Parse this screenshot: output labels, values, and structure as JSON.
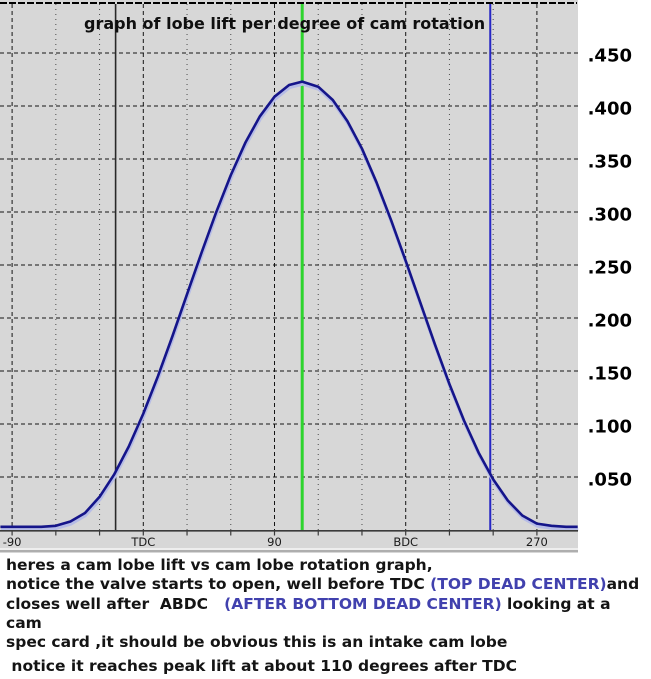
{
  "chart_data": {
    "type": "line",
    "title": "graph of lobe lift per degree of cam rotation",
    "x_axis": {
      "major_ticks": [
        {
          "deg": -90,
          "label": "-90"
        },
        {
          "deg": 0,
          "label": "TDC"
        },
        {
          "deg": 90,
          "label": "90"
        },
        {
          "deg": 180,
          "label": "BDC"
        },
        {
          "deg": 270,
          "label": "270"
        }
      ],
      "minor_tick_step_deg": 30,
      "range_deg": [
        -98,
        298
      ]
    },
    "y_axis": {
      "ticks": [
        {
          "value": 0.45,
          "label": ".450"
        },
        {
          "value": 0.4,
          "label": ".400"
        },
        {
          "value": 0.35,
          "label": ".350"
        },
        {
          "value": 0.3,
          "label": ".300"
        },
        {
          "value": 0.25,
          "label": ".250"
        },
        {
          "value": 0.2,
          "label": ".200"
        },
        {
          "value": 0.15,
          "label": ".150"
        },
        {
          "value": 0.1,
          "label": ".100"
        },
        {
          "value": 0.05,
          "label": ".050"
        }
      ],
      "range": [
        0,
        0.5
      ]
    },
    "series": [
      {
        "name": "cam lobe lift",
        "peak_lift": 0.423,
        "peak_deg_after_tdc": 110,
        "points_deg_lift": [
          [
            -98,
            0.003
          ],
          [
            -90,
            0.003
          ],
          [
            -80,
            0.003
          ],
          [
            -70,
            0.003
          ],
          [
            -60,
            0.004
          ],
          [
            -50,
            0.008
          ],
          [
            -40,
            0.016
          ],
          [
            -30,
            0.0313
          ],
          [
            -20,
            0.0523
          ],
          [
            -10,
            0.0787
          ],
          [
            0,
            0.1098
          ],
          [
            10,
            0.145
          ],
          [
            20,
            0.183
          ],
          [
            30,
            0.2224
          ],
          [
            40,
            0.2618
          ],
          [
            50,
            0.2998
          ],
          [
            60,
            0.3348
          ],
          [
            70,
            0.3653
          ],
          [
            80,
            0.3903
          ],
          [
            90,
            0.4088
          ],
          [
            100,
            0.4198
          ],
          [
            109,
            0.423
          ],
          [
            120,
            0.4182
          ],
          [
            130,
            0.4057
          ],
          [
            140,
            0.3858
          ],
          [
            150,
            0.3597
          ],
          [
            160,
            0.328
          ],
          [
            170,
            0.2923
          ],
          [
            180,
            0.254
          ],
          [
            190,
            0.2145
          ],
          [
            200,
            0.1752
          ],
          [
            210,
            0.1377
          ],
          [
            220,
            0.1033
          ],
          [
            230,
            0.073
          ],
          [
            240,
            0.0477
          ],
          [
            250,
            0.0278
          ],
          [
            260,
            0.0137
          ],
          [
            270,
            0.006
          ],
          [
            280,
            0.004
          ],
          [
            290,
            0.003
          ],
          [
            298,
            0.003
          ]
        ]
      }
    ],
    "markers": [
      {
        "name": "valve-open-line",
        "deg": -19,
        "color": "#282828"
      },
      {
        "name": "peak-lift-line",
        "deg": 109,
        "color": "#2ed42e"
      },
      {
        "name": "valve-close-line",
        "deg": 238,
        "color": "#2626c4"
      }
    ],
    "legend": "none",
    "grid": "dashed-major, dotted-minor"
  },
  "colors": {
    "plot_bg": "#d7d7d7",
    "grid": "#141414",
    "minor_grid": "#4a4a4a",
    "curve": "#15158a",
    "curve_shadow": "#b6bce6",
    "axis": "#3a3a3a",
    "top_border": "#000000",
    "bottom_border": "#a8a8a8",
    "tick_label": "#1a1a1a",
    "y_label": "#000000",
    "caption_text": "#141414",
    "caption_accent": "#4141ae"
  },
  "caption": {
    "lines": [
      {
        "gap_before": false,
        "segments": [
          {
            "text": "heres a cam lobe lift vs cam lobe rotation graph,",
            "accent": false
          }
        ]
      },
      {
        "gap_before": false,
        "segments": [
          {
            "text": "notice the valve starts to open, well before TDC ",
            "accent": false
          },
          {
            "text": "(TOP DEAD CENTER)",
            "accent": true
          },
          {
            "text": "and",
            "accent": false
          }
        ]
      },
      {
        "gap_before": false,
        "segments": [
          {
            "text": "closes well after  ABDC   ",
            "accent": false
          },
          {
            "text": "(AFTER BOTTOM DEAD CENTER)",
            "accent": true
          },
          {
            "text": " looking at a cam",
            "accent": false
          }
        ]
      },
      {
        "gap_before": false,
        "segments": [
          {
            "text": "spec card ,it should be obvious this is an intake cam lobe",
            "accent": false
          }
        ]
      },
      {
        "gap_before": true,
        "segments": [
          {
            "text": " notice it reaches peak lift at about 110 degrees after TDC",
            "accent": false
          }
        ]
      }
    ]
  }
}
